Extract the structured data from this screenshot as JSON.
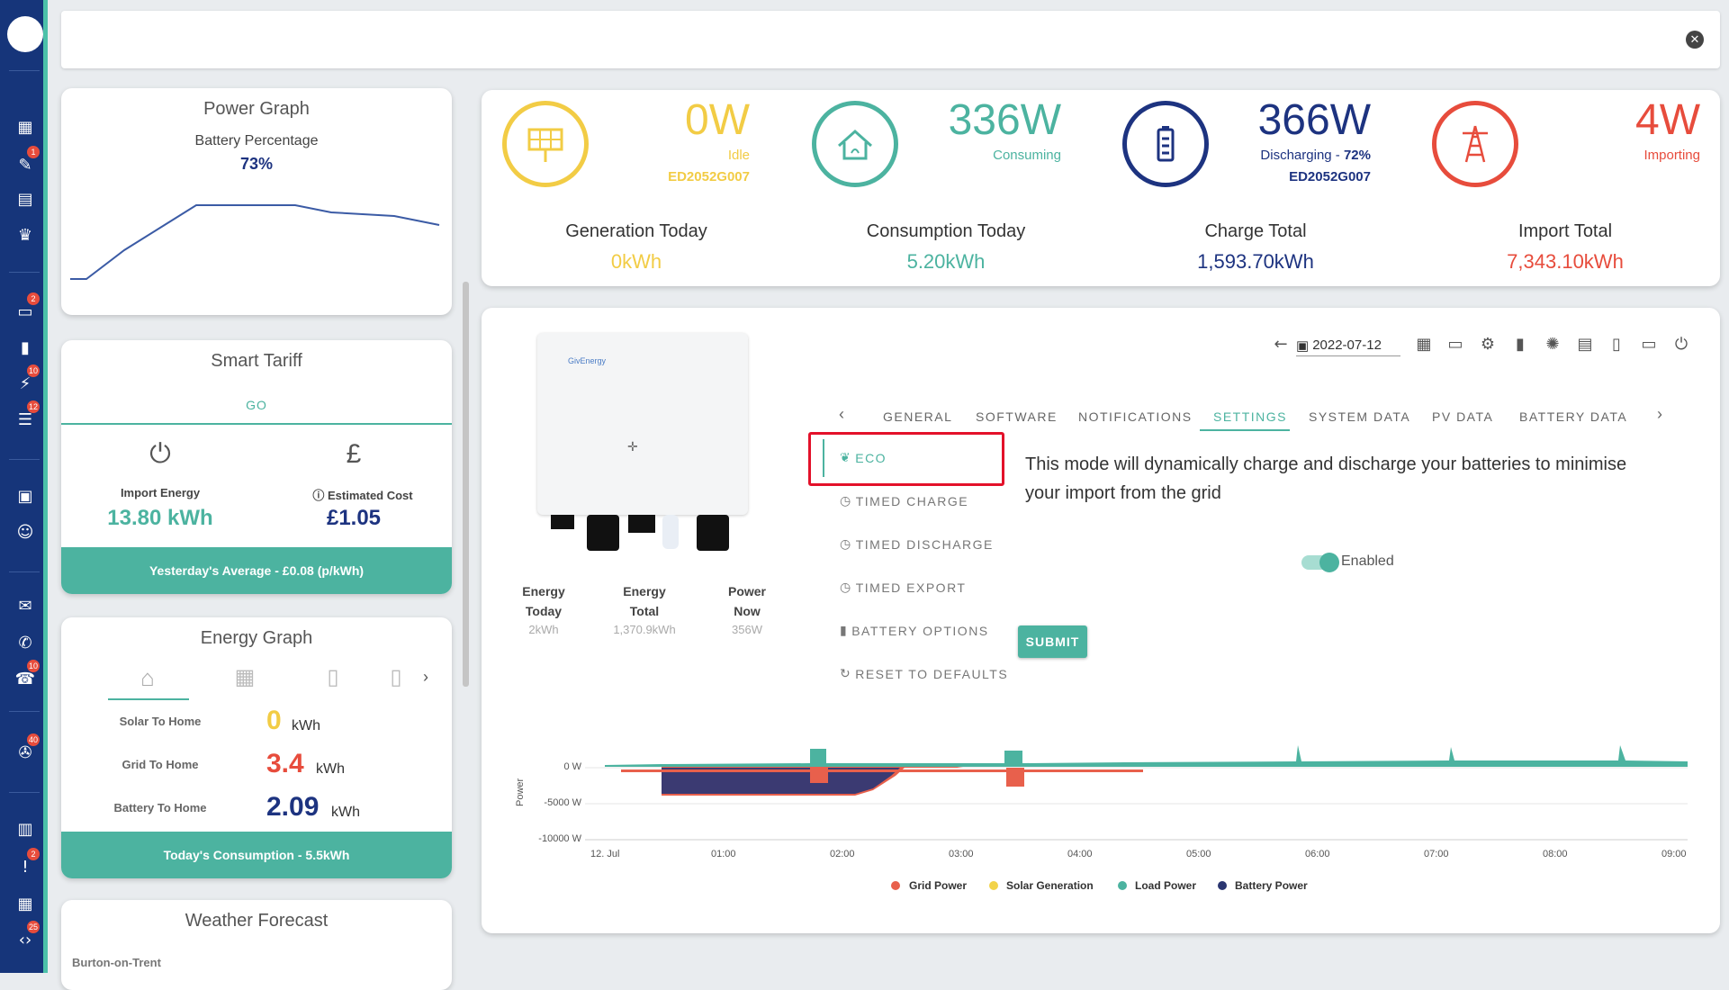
{
  "sidebar": {
    "badges": [
      "1",
      "2",
      "10",
      "12",
      "10",
      "40",
      "2",
      "25"
    ]
  },
  "power_graph": {
    "title": "Power Graph",
    "subtitle": "Battery Percentage",
    "value": "73%"
  },
  "smart_tariff": {
    "title": "Smart Tariff",
    "tariff": "GO",
    "import_label": "Import Energy",
    "import_value": "13.80 kWh",
    "cost_label": "Estimated Cost",
    "cost_value": "£1.05",
    "footer": "Yesterday's Average - £0.08 (p/kWh)"
  },
  "energy_graph": {
    "title": "Energy Graph",
    "rows": [
      {
        "label": "Solar To Home",
        "value": "0",
        "unit": "kWh"
      },
      {
        "label": "Grid To Home",
        "value": "3.4",
        "unit": "kWh"
      },
      {
        "label": "Battery To Home",
        "value": "2.09",
        "unit": "kWh"
      }
    ],
    "footer": "Today's Consumption - 5.5kWh"
  },
  "weather": {
    "title": "Weather Forecast",
    "location": "Burton-on-Trent"
  },
  "stats": {
    "solar": {
      "value": "0W",
      "status": "Idle",
      "serial": "ED2052G007"
    },
    "home": {
      "value": "336W",
      "status": "Consuming"
    },
    "battery": {
      "value": "366W",
      "status": "Discharging - ",
      "percent": "72%",
      "serial": "ED2052G007"
    },
    "grid": {
      "value": "4W",
      "status": "Importing"
    }
  },
  "totals": [
    {
      "label": "Generation Today",
      "value": "0kWh"
    },
    {
      "label": "Consumption Today",
      "value": "5.20kWh"
    },
    {
      "label": "Charge Total",
      "value": "1,593.70kWh"
    },
    {
      "label": "Import Total",
      "value": "7,343.10kWh"
    }
  ],
  "inverter": {
    "brand": "GivEnergy",
    "metrics": [
      {
        "label1": "Energy",
        "label2": "Today",
        "value": "2kWh"
      },
      {
        "label1": "Energy",
        "label2": "Total",
        "value": "1,370.9kWh"
      },
      {
        "label1": "Power",
        "label2": "Now",
        "value": "356W"
      }
    ]
  },
  "toolbar": {
    "date": "2022-07-12"
  },
  "tabs": [
    "GENERAL",
    "SOFTWARE",
    "NOTIFICATIONS",
    "SETTINGS",
    "SYSTEM DATA",
    "PV DATA",
    "BATTERY DATA"
  ],
  "settings_menu": [
    "ECO",
    "TIMED CHARGE",
    "TIMED DISCHARGE",
    "TIMED EXPORT",
    "BATTERY OPTIONS",
    "RESET TO DEFAULTS"
  ],
  "eco": {
    "description": "This mode will dynamically charge and discharge your batteries to minimise your import from the grid",
    "toggle_label": "Enabled",
    "toggle_on": true,
    "submit": "SUBMIT"
  },
  "chart_data": {
    "type": "area",
    "ylabel": "Power",
    "y_ticks": [
      "0 W",
      "-5000 W",
      "-10000 W"
    ],
    "x_ticks": [
      "12. Jul",
      "01:00",
      "02:00",
      "03:00",
      "04:00",
      "05:00",
      "06:00",
      "07:00",
      "08:00",
      "09:00"
    ],
    "ylim": [
      -10000,
      0
    ],
    "series": [
      {
        "name": "Grid Power",
        "color": "#e8604c"
      },
      {
        "name": "Solar Generation",
        "color": "#f2d34a"
      },
      {
        "name": "Load Power",
        "color": "#4cb3a0"
      },
      {
        "name": "Battery Power",
        "color": "#3b3a72"
      }
    ]
  }
}
